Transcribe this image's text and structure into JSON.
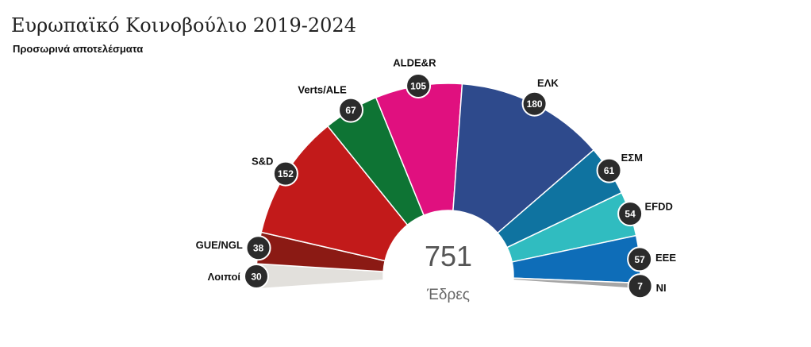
{
  "chart_data": {
    "type": "pie",
    "variant": "semicircle-parliament",
    "title": "Ευρωπαϊκό Κοινοβούλιο 2019-2024",
    "subtitle": "Προσωρινά αποτελέσματα",
    "total": "751",
    "total_label": "Έδρες",
    "slices": [
      {
        "name": "Λοιποί",
        "value": 30,
        "color": "#e2e0dc"
      },
      {
        "name": "GUE/NGL",
        "value": 38,
        "color": "#8b1a14"
      },
      {
        "name": "S&D",
        "value": 152,
        "color": "#c21a1a"
      },
      {
        "name": "Verts/ALE",
        "value": 67,
        "color": "#0e7434"
      },
      {
        "name": "ALDE&R",
        "value": 105,
        "color": "#e0107f"
      },
      {
        "name": "ΕΛΚ",
        "value": 180,
        "color": "#2e4a8c"
      },
      {
        "name": "ΕΣΜ",
        "value": 61,
        "color": "#0f73a0"
      },
      {
        "name": "EFDD",
        "value": 54,
        "color": "#30bcc0"
      },
      {
        "name": "EEE",
        "value": 57,
        "color": "#0e6db8"
      },
      {
        "name": "NI",
        "value": 7,
        "color": "#a6a6a6"
      }
    ]
  }
}
